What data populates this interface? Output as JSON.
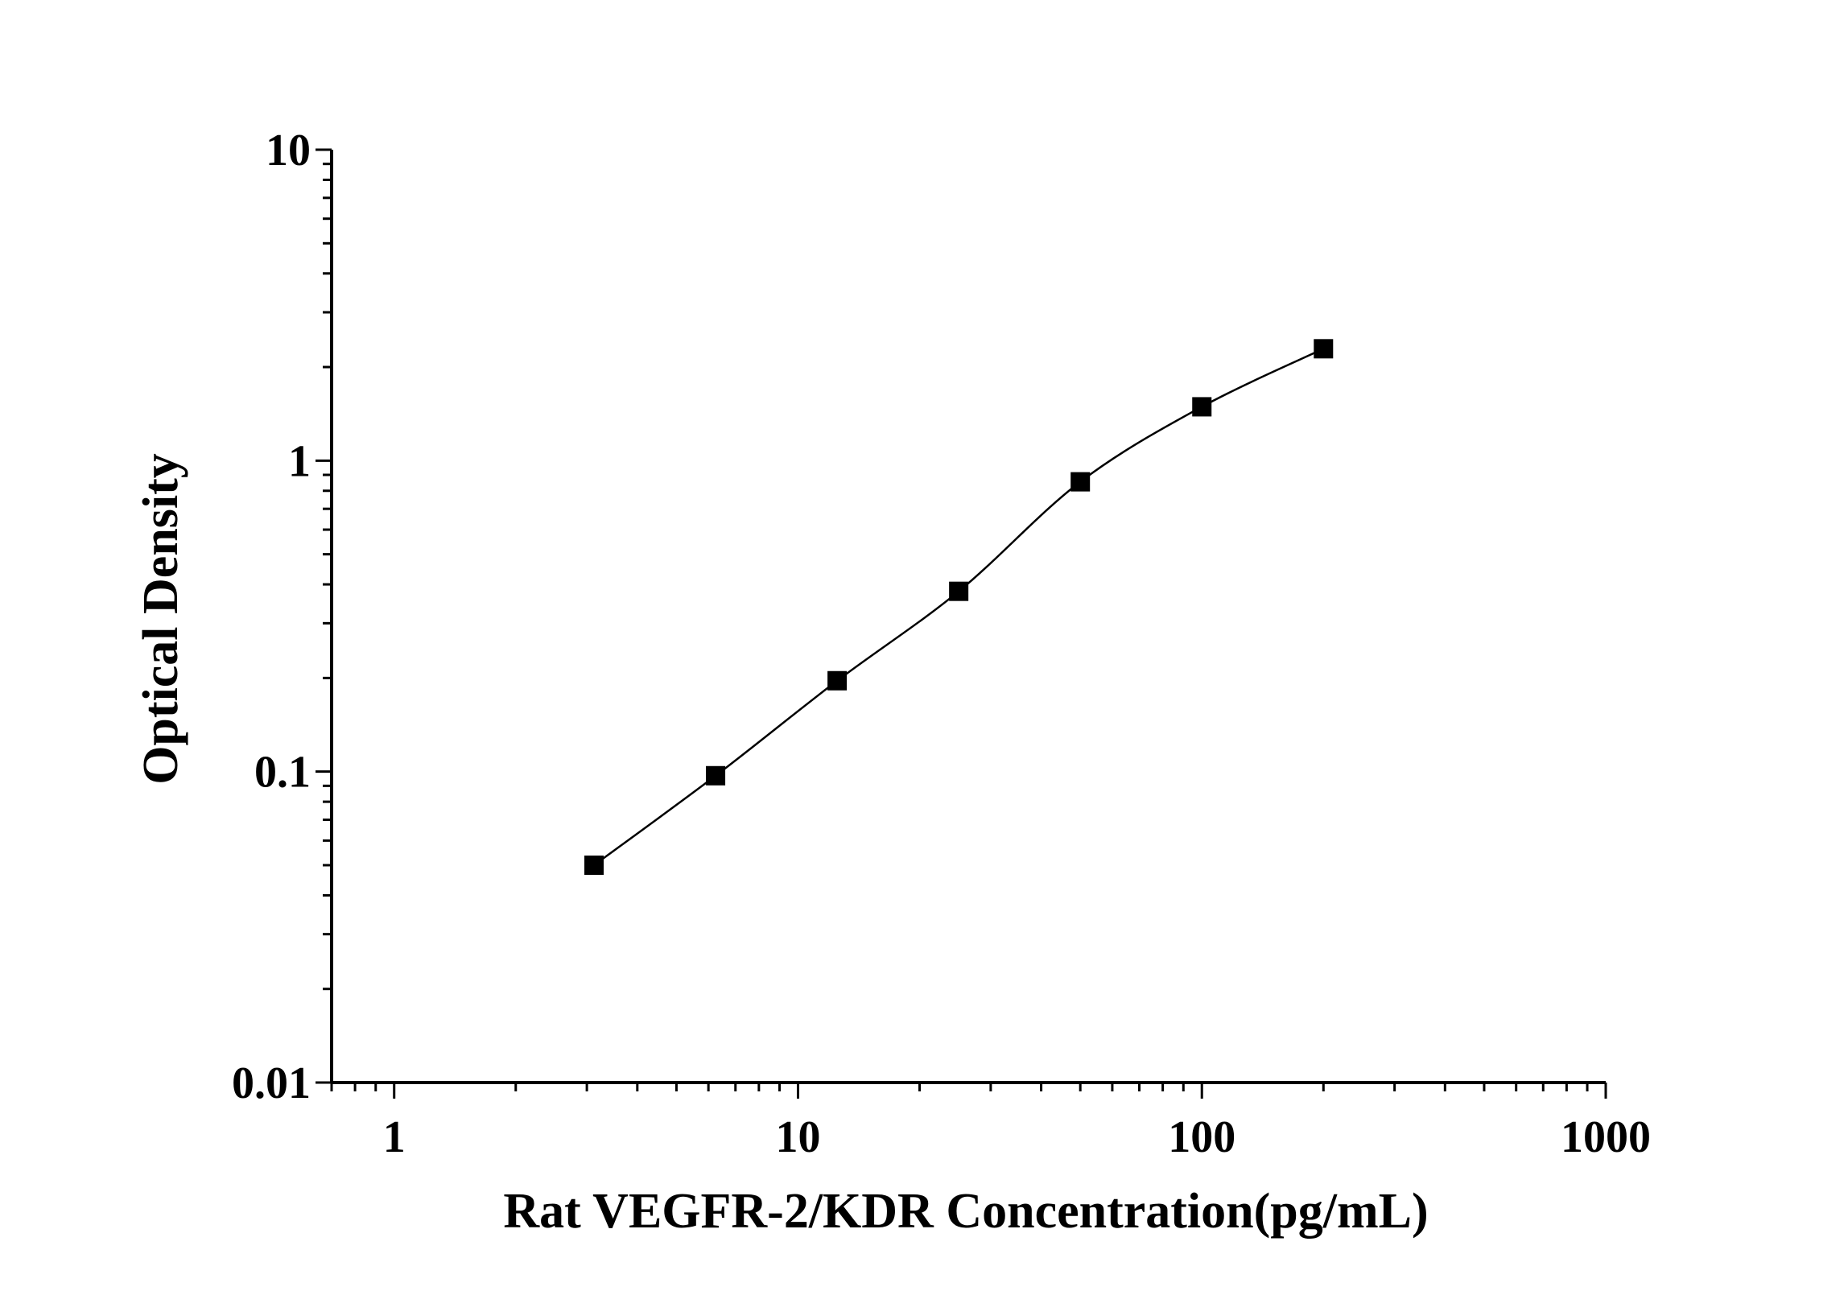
{
  "chart_data": {
    "type": "scatter",
    "title": "",
    "xlabel": "Rat VEGFR-2/KDR Concentration(pg/mL)",
    "ylabel": "Optical Density",
    "xscale": "log",
    "yscale": "log",
    "xlim": [
      0.7,
      1000
    ],
    "ylim": [
      0.01,
      10
    ],
    "x_tick_labels": [
      "1",
      "10",
      "100",
      "1000"
    ],
    "x_tick_values": [
      1,
      10,
      100,
      1000
    ],
    "y_tick_labels": [
      "0.01",
      "0.1",
      "1",
      "10"
    ],
    "y_tick_values": [
      0.01,
      0.1,
      1,
      10
    ],
    "grid": false,
    "legend": "none",
    "marker": "square",
    "line": "connected",
    "colors": {
      "marker": "#000000",
      "line": "#000000",
      "axis": "#000000"
    },
    "series": [
      {
        "x": [
          3.125,
          6.25,
          12.5,
          25,
          50,
          100,
          200
        ],
        "y": [
          0.05,
          0.097,
          0.196,
          0.38,
          0.855,
          1.49,
          2.29
        ]
      }
    ]
  }
}
